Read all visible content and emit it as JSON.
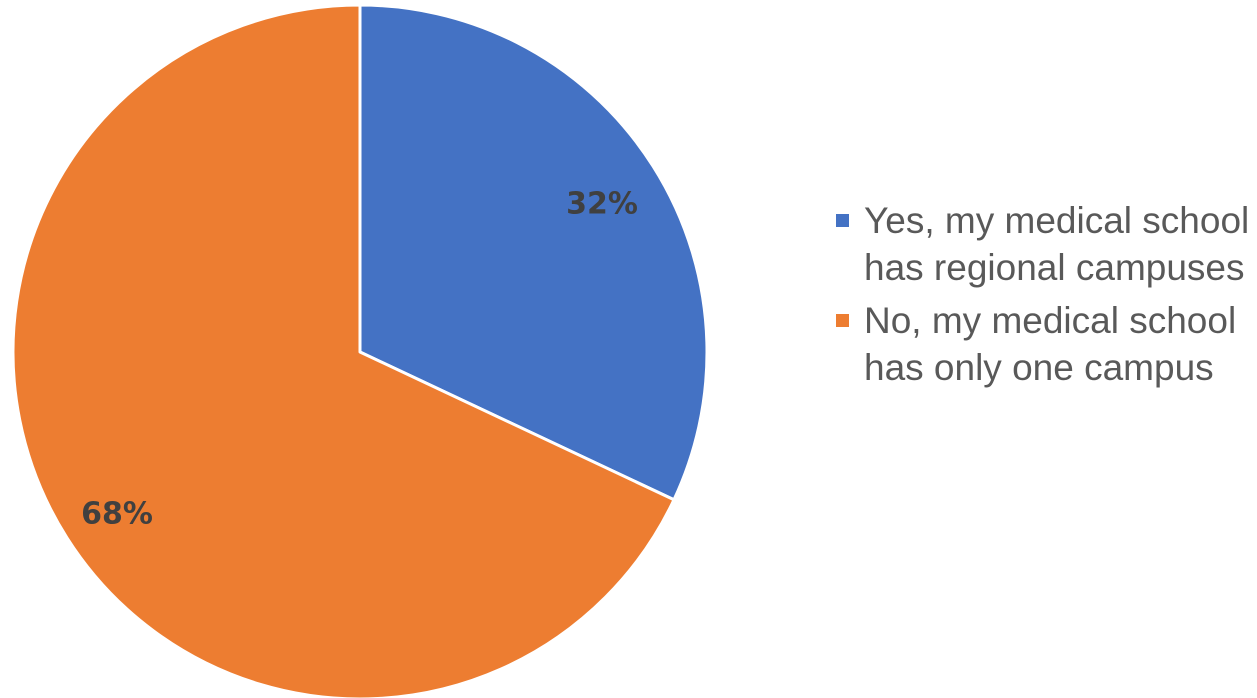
{
  "chart_data": {
    "type": "pie",
    "title": "",
    "legend_position": "right",
    "slices": [
      {
        "label": "Yes, my medical school has regional campuses",
        "value": 32,
        "display": "32%",
        "color": "#4472C4"
      },
      {
        "label": "No, my medical school has only one campus",
        "value": 68,
        "display": "68%",
        "color": "#ED7D31"
      }
    ]
  }
}
